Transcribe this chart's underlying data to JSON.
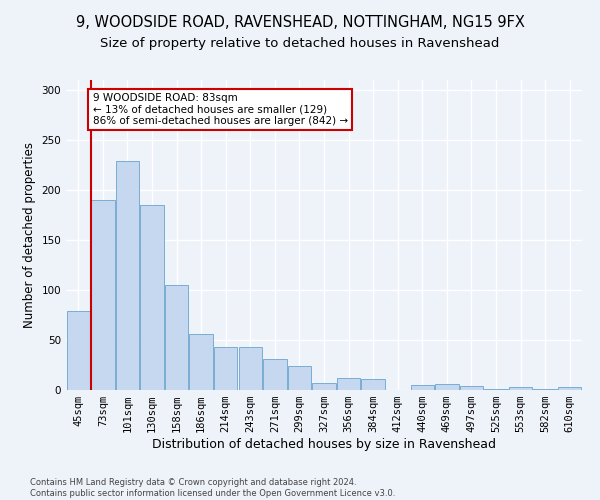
{
  "title_line1": "9, WOODSIDE ROAD, RAVENSHEAD, NOTTINGHAM, NG15 9FX",
  "title_line2": "Size of property relative to detached houses in Ravenshead",
  "xlabel": "Distribution of detached houses by size in Ravenshead",
  "ylabel": "Number of detached properties",
  "categories": [
    "45sqm",
    "73sqm",
    "101sqm",
    "130sqm",
    "158sqm",
    "186sqm",
    "214sqm",
    "243sqm",
    "271sqm",
    "299sqm",
    "327sqm",
    "356sqm",
    "384sqm",
    "412sqm",
    "440sqm",
    "469sqm",
    "497sqm",
    "525sqm",
    "553sqm",
    "582sqm",
    "610sqm"
  ],
  "values": [
    79,
    190,
    229,
    185,
    105,
    56,
    43,
    43,
    31,
    24,
    7,
    12,
    11,
    0,
    5,
    6,
    4,
    1,
    3,
    1,
    3
  ],
  "bar_color": "#c5d8f0",
  "bar_edge_color": "#7aadd4",
  "ylim": [
    0,
    310
  ],
  "yticks": [
    0,
    50,
    100,
    150,
    200,
    250,
    300
  ],
  "vline_x": 0.5,
  "annotation_text": "9 WOODSIDE ROAD: 83sqm\n← 13% of detached houses are smaller (129)\n86% of semi-detached houses are larger (842) →",
  "vline_color": "#cc0000",
  "annotation_box_edge": "#cc0000",
  "footer_text": "Contains HM Land Registry data © Crown copyright and database right 2024.\nContains public sector information licensed under the Open Government Licence v3.0.",
  "background_color": "#eef2f9",
  "grid_color": "#ffffff",
  "title_fontsize": 10.5,
  "subtitle_fontsize": 9.5,
  "tick_fontsize": 7.5,
  "ylabel_fontsize": 8.5,
  "xlabel_fontsize": 9,
  "footer_fontsize": 6,
  "annotation_fontsize": 7.5
}
